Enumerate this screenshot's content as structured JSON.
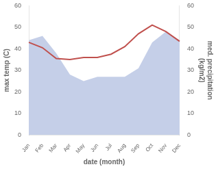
{
  "chart_data": {
    "type": "line",
    "categories": [
      "Jan",
      "Feb",
      "Mar",
      "Apr",
      "May",
      "Jun",
      "Jul",
      "Aug",
      "Sep",
      "Oct",
      "Nov",
      "Dec"
    ],
    "xlabel": "date (month)",
    "ylabel": "max temp (C)",
    "y2label": "med. precipitation\n(kg/m2)",
    "series": [
      {
        "type": "area",
        "color": "#c5cfe8",
        "axis": "y2",
        "values": [
          44,
          46,
          38,
          28,
          25,
          27,
          27,
          27,
          31,
          43,
          48,
          44
        ]
      },
      {
        "type": "line",
        "color": "#c0504d",
        "values": [
          43,
          40.5,
          35.5,
          35,
          36,
          36,
          37.5,
          41,
          47,
          51,
          48,
          43.5
        ]
      }
    ],
    "ylim": [
      0,
      60
    ],
    "yticks": [
      0,
      10,
      20,
      30,
      40,
      50,
      60
    ],
    "y2lim": [
      0,
      60
    ],
    "y2ticks": [
      0,
      10,
      20,
      30,
      40,
      50,
      60
    ],
    "grid": false
  }
}
